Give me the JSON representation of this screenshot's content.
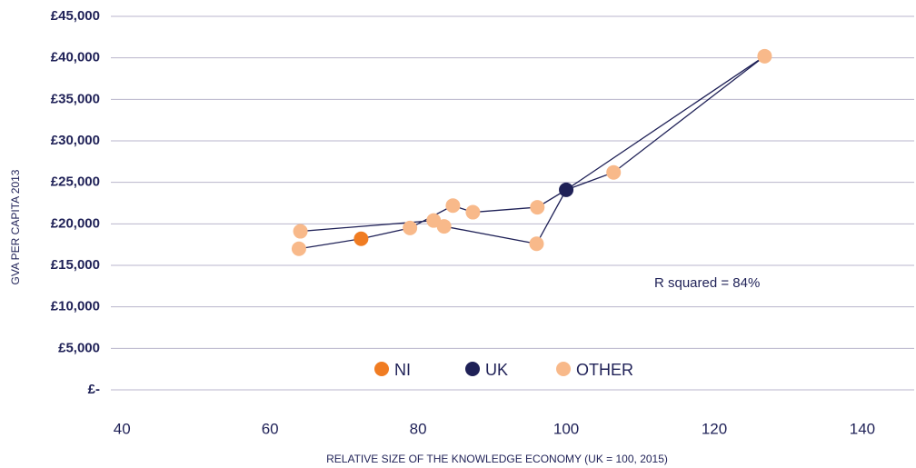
{
  "chart_data": {
    "type": "scatter",
    "y_label": "GVA PER CAPITA 2013",
    "x_label": "RELATIVE SIZE OF THE KNOWLEDGE ECONOMY (UK = 100, 2015)",
    "annotation": "R squared = 84%",
    "xlim": [
      38.5,
      147
    ],
    "xticks": [
      40,
      60,
      80,
      100,
      120,
      140
    ],
    "ylim": [
      0,
      45000
    ],
    "yticks": [
      {
        "value": 0,
        "label": "£-"
      },
      {
        "value": 5000,
        "label": "£5,000"
      },
      {
        "value": 10000,
        "label": "£10,000"
      },
      {
        "value": 15000,
        "label": "£15,000"
      },
      {
        "value": 20000,
        "label": "£20,000"
      },
      {
        "value": 25000,
        "label": "£25,000"
      },
      {
        "value": 30000,
        "label": "£30,000"
      },
      {
        "value": 35000,
        "label": "£35,000"
      },
      {
        "value": 40000,
        "label": "£40,000"
      },
      {
        "value": 45000,
        "label": "£45,000"
      }
    ],
    "grid": true,
    "line_color": "#1f2157",
    "legend": "bottom",
    "series": [
      {
        "name": "NI",
        "color": "#f07c22",
        "x": [
          72.3
        ],
        "values": [
          18200
        ]
      },
      {
        "name": "UK",
        "color": "#1f2157",
        "x": [
          100
        ],
        "values": [
          24100
        ]
      },
      {
        "name": "OTHER",
        "color": "#f8b98a",
        "x": [
          63.9,
          78.9,
          84.7,
          87.4,
          96.1,
          106.4,
          126.8,
          96.0,
          83.5,
          82.1,
          64.1
        ],
        "values": [
          17000,
          19500,
          22200,
          21400,
          22000,
          26200,
          40200,
          17600,
          19700,
          20400,
          19100
        ]
      }
    ]
  }
}
